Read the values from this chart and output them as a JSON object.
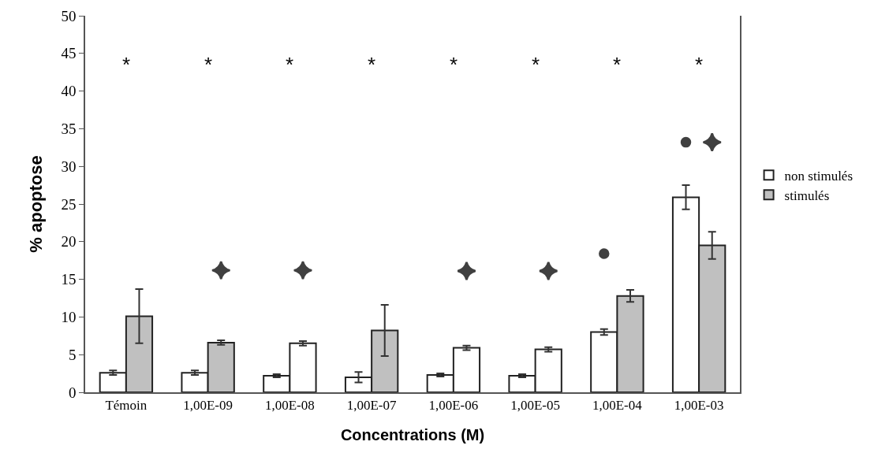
{
  "chart_data": {
    "type": "bar",
    "xlabel": "Concentrations (M)",
    "ylabel": "% apoptose",
    "categories": [
      "Témoin",
      "1,00E-09",
      "1,00E-08",
      "1,00E-07",
      "1,00E-06",
      "1,00E-05",
      "1,00E-04",
      "1,00E-03"
    ],
    "series": [
      {
        "name": "non stimulés",
        "color": "#ffffff",
        "values": [
          2.6,
          2.6,
          2.2,
          2.0,
          2.3,
          2.2,
          8.0,
          25.9
        ],
        "errors": [
          0.3,
          0.3,
          0.2,
          0.7,
          0.2,
          0.2,
          0.4,
          1.6
        ]
      },
      {
        "name": "stimulés",
        "colors": [
          "#c0c0c0",
          "#c0c0c0",
          "#ffffff",
          "#c0c0c0",
          "#ffffff",
          "#ffffff",
          "#c0c0c0",
          "#c0c0c0"
        ],
        "values": [
          10.1,
          6.6,
          6.5,
          8.2,
          5.9,
          5.7,
          12.8,
          19.5
        ],
        "errors": [
          3.6,
          0.3,
          0.3,
          3.4,
          0.3,
          0.3,
          0.8,
          1.8
        ]
      },
      {
        "type": "scatter",
        "marker": "circle",
        "color": "#404040",
        "x": [
          "1,00E-04",
          "1,00E-03"
        ],
        "values": [
          18.4,
          33.2
        ]
      },
      {
        "type": "scatter",
        "marker": "diamond",
        "color": "#404040",
        "x": [
          "1,00E-09",
          "1,00E-08",
          "1,00E-06",
          "1,00E-05",
          "1,00E-03"
        ],
        "values": [
          16.2,
          16.2,
          16.1,
          16.1,
          33.2
        ]
      }
    ],
    "annotations": [
      "*",
      "*",
      "*",
      "*",
      "*",
      "*",
      "*",
      "*"
    ],
    "ylim": [
      0,
      50
    ],
    "yticks": [
      0,
      5,
      10,
      15,
      20,
      25,
      30,
      35,
      40,
      45,
      50
    ],
    "grid": false,
    "legend": "right"
  }
}
